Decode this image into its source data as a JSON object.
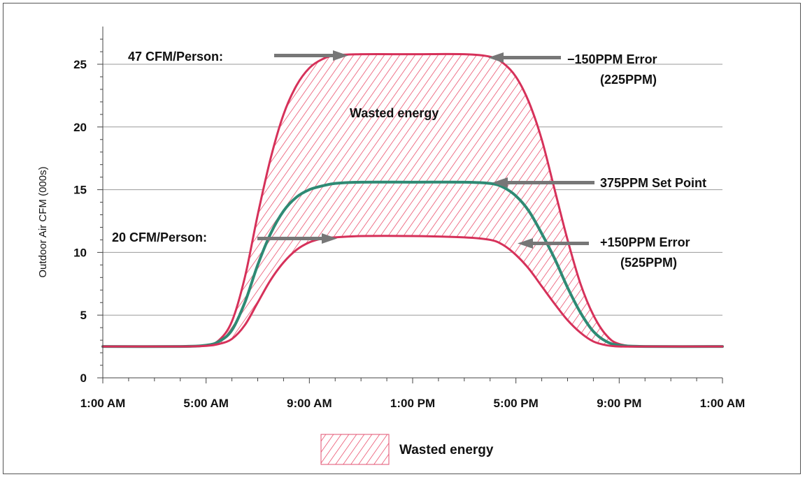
{
  "chart_data": {
    "type": "line",
    "ylabel": "Outdoor Air CFM (000s)",
    "xlabel": "",
    "title": "",
    "ylim": [
      0,
      27
    ],
    "xlim": [
      0,
      24
    ],
    "y_ticks": [
      0,
      5,
      10,
      15,
      20,
      25
    ],
    "x_tick_labels": [
      "1:00 AM",
      "5:00 AM",
      "9:00 AM",
      "1:00 PM",
      "5:00 PM",
      "9:00 PM",
      "1:00 AM"
    ],
    "grid": "horizontal",
    "x_unit_note": "hours after 1:00 AM",
    "series": [
      {
        "name": "-150PPM Error (225PPM)",
        "color": "#d6315a",
        "x": [
          0,
          3,
          4,
          4.5,
          5,
          5.5,
          6,
          6.5,
          7,
          7.5,
          8,
          8.5,
          9,
          10,
          12,
          14,
          15,
          15.5,
          16,
          16.5,
          17,
          17.5,
          18,
          18.5,
          19,
          19.5,
          20,
          21,
          24
        ],
        "y": [
          2.5,
          2.5,
          2.6,
          3.0,
          4.5,
          8.0,
          13.0,
          17.5,
          21.0,
          23.3,
          24.7,
          25.4,
          25.7,
          25.8,
          25.8,
          25.8,
          25.6,
          25.1,
          24.0,
          22.0,
          19.0,
          15.0,
          11.0,
          7.5,
          5.0,
          3.4,
          2.7,
          2.5,
          2.5
        ]
      },
      {
        "name": "375PPM Set Point",
        "color": "#2f8a74",
        "x": [
          0,
          3,
          4,
          4.5,
          5,
          5.5,
          6,
          6.5,
          7,
          7.5,
          8,
          8.5,
          9,
          10,
          12,
          14,
          15,
          15.5,
          16,
          16.5,
          17,
          17.5,
          18,
          18.5,
          19,
          19.5,
          20,
          21,
          24
        ],
        "y": [
          2.5,
          2.5,
          2.6,
          2.9,
          3.8,
          6.0,
          9.0,
          11.5,
          13.3,
          14.4,
          15.0,
          15.3,
          15.5,
          15.6,
          15.6,
          15.6,
          15.5,
          15.2,
          14.5,
          13.3,
          11.5,
          9.5,
          7.2,
          5.2,
          3.7,
          2.9,
          2.6,
          2.5,
          2.5
        ]
      },
      {
        "name": "+150PPM Error (525PPM)",
        "color": "#d6315a",
        "x": [
          0,
          3,
          4,
          4.5,
          5,
          5.5,
          6,
          6.5,
          7,
          7.5,
          8,
          8.5,
          9,
          10,
          12,
          14,
          15,
          15.5,
          16,
          16.5,
          17,
          17.5,
          18,
          18.5,
          19,
          19.5,
          20,
          21,
          24
        ],
        "y": [
          2.5,
          2.5,
          2.55,
          2.7,
          3.1,
          4.2,
          6.0,
          7.8,
          9.2,
          10.2,
          10.8,
          11.1,
          11.2,
          11.3,
          11.3,
          11.2,
          11.0,
          10.6,
          9.8,
          8.7,
          7.3,
          5.9,
          4.6,
          3.6,
          2.9,
          2.6,
          2.5,
          2.5,
          2.5
        ]
      }
    ],
    "shaded_region": {
      "label": "Wasted energy",
      "between": [
        "-150PPM Error (225PPM)",
        "+150PPM Error (525PPM)"
      ]
    },
    "annotations": [
      {
        "id": "top_left",
        "text": "47 CFM/Person:"
      },
      {
        "id": "top_right_1",
        "text": "−150PPM Error"
      },
      {
        "id": "top_right_2",
        "text": "(225PPM)"
      },
      {
        "id": "wasted",
        "text": "Wasted energy"
      },
      {
        "id": "mid_right",
        "text": "375PPM Set Point"
      },
      {
        "id": "low_left",
        "text": "20 CFM/Person:"
      },
      {
        "id": "low_right_1",
        "text": "+150PPM Error"
      },
      {
        "id": "low_right_2",
        "text": "(525PPM)"
      }
    ],
    "legend": {
      "label": "Wasted energy",
      "placement": "bottom-center"
    }
  }
}
